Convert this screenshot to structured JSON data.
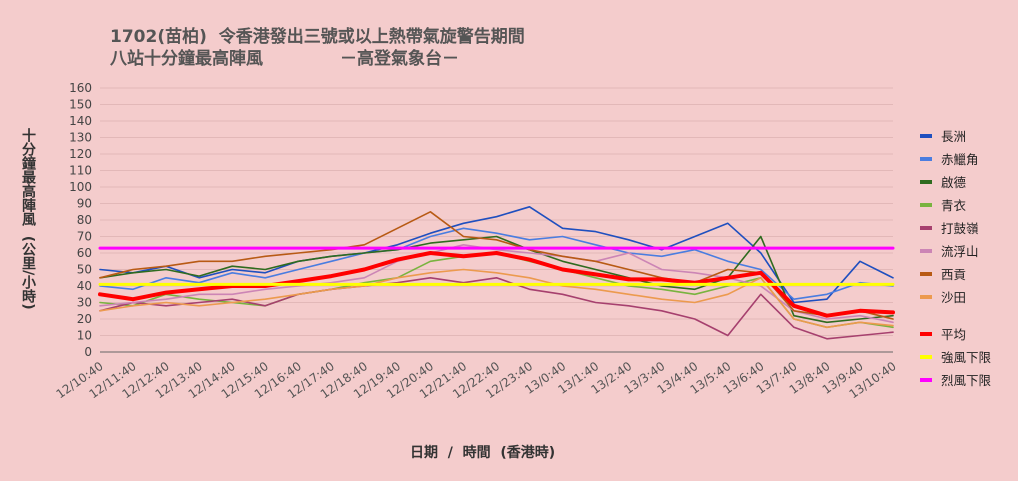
{
  "title": {
    "line1": "1702(苗柏)  令香港發出三號或以上熱帶氣旋警告期間",
    "line2": "八站十分鐘最高陣風             －高登氣象台－"
  },
  "colors": {
    "background": "#f4cccc",
    "grid": "#e2b8b8",
    "axis": "#666666"
  },
  "chart_data": {
    "type": "line",
    "xlabel": "日期  /  時間  (香港時)",
    "ylabel": "十分鐘最高陣風  (公里/小時)",
    "ylim": [
      0,
      160
    ],
    "yticks": [
      0,
      10,
      20,
      30,
      40,
      50,
      60,
      70,
      80,
      90,
      100,
      110,
      120,
      130,
      140,
      150,
      160
    ],
    "grid": true,
    "legend_position": "right",
    "categories": [
      "12/10:40",
      "12/11:40",
      "12/12:40",
      "12/13:40",
      "12/14:40",
      "12/15:40",
      "12/16:40",
      "12/17:40",
      "12/18:40",
      "12/19:40",
      "12/20:40",
      "12/21:40",
      "12/22:40",
      "12/23:40",
      "13/0:40",
      "13/1:40",
      "13/2:40",
      "13/3:40",
      "13/4:40",
      "13/5:40",
      "13/6:40",
      "13/7:40",
      "13/8:40",
      "13/9:40",
      "13/10:40"
    ],
    "series": [
      {
        "name": "長洲",
        "color": "#1f4fbf",
        "width": 1.6,
        "values": [
          50,
          48,
          52,
          45,
          50,
          48,
          55,
          58,
          60,
          65,
          72,
          78,
          82,
          88,
          75,
          73,
          68,
          62,
          70,
          78,
          60,
          30,
          32,
          55,
          45
        ]
      },
      {
        "name": "赤鱲角",
        "color": "#4a7de0",
        "width": 1.6,
        "values": [
          40,
          38,
          45,
          42,
          48,
          45,
          50,
          55,
          60,
          62,
          70,
          75,
          72,
          68,
          70,
          65,
          60,
          58,
          62,
          55,
          50,
          32,
          35,
          42,
          40
        ]
      },
      {
        "name": "啟德",
        "color": "#2f6b1f",
        "width": 1.6,
        "values": [
          45,
          48,
          50,
          46,
          52,
          50,
          55,
          58,
          60,
          62,
          66,
          68,
          70,
          62,
          55,
          50,
          45,
          40,
          38,
          45,
          70,
          22,
          18,
          20,
          22
        ]
      },
      {
        "name": "青衣",
        "color": "#79b33f",
        "width": 1.6,
        "values": [
          30,
          28,
          35,
          32,
          30,
          28,
          35,
          38,
          42,
          45,
          55,
          58,
          60,
          55,
          50,
          45,
          40,
          38,
          35,
          40,
          45,
          20,
          15,
          18,
          15
        ]
      },
      {
        "name": "打鼓嶺",
        "color": "#a6406e",
        "width": 1.6,
        "values": [
          25,
          30,
          28,
          30,
          32,
          28,
          35,
          38,
          40,
          42,
          45,
          42,
          45,
          38,
          35,
          30,
          28,
          25,
          20,
          10,
          35,
          15,
          8,
          10,
          12
        ]
      },
      {
        "name": "流浮山",
        "color": "#cc85b5",
        "width": 1.6,
        "values": [
          28,
          30,
          32,
          35,
          35,
          38,
          40,
          42,
          45,
          55,
          60,
          65,
          62,
          60,
          58,
          55,
          60,
          50,
          48,
          45,
          40,
          25,
          20,
          22,
          18
        ]
      },
      {
        "name": "西貢",
        "color": "#b85a14",
        "width": 1.6,
        "values": [
          45,
          50,
          52,
          55,
          55,
          58,
          60,
          62,
          65,
          75,
          85,
          70,
          68,
          62,
          58,
          55,
          50,
          45,
          42,
          50,
          48,
          25,
          22,
          25,
          20
        ]
      },
      {
        "name": "沙田",
        "color": "#ec9a4e",
        "width": 1.6,
        "values": [
          25,
          28,
          30,
          28,
          30,
          32,
          35,
          38,
          40,
          45,
          48,
          50,
          48,
          45,
          40,
          38,
          35,
          32,
          30,
          35,
          45,
          20,
          15,
          18,
          16
        ]
      },
      {
        "name": "平均",
        "color": "#ff0000",
        "width": 4.0,
        "values": [
          35,
          32,
          36,
          38,
          40,
          40,
          43,
          46,
          50,
          56,
          60,
          58,
          60,
          56,
          50,
          47,
          44,
          44,
          42,
          45,
          48,
          28,
          22,
          25,
          24
        ]
      },
      {
        "name": "強風下限",
        "color": "#ffff00",
        "width": 3,
        "values": [
          41,
          41,
          41,
          41,
          41,
          41,
          41,
          41,
          41,
          41,
          41,
          41,
          41,
          41,
          41,
          41,
          41,
          41,
          41,
          41,
          41,
          41,
          41,
          41,
          41
        ]
      },
      {
        "name": "烈風下限",
        "color": "#ff00ff",
        "width": 3,
        "values": [
          63,
          63,
          63,
          63,
          63,
          63,
          63,
          63,
          63,
          63,
          63,
          63,
          63,
          63,
          63,
          63,
          63,
          63,
          63,
          63,
          63,
          63,
          63,
          63,
          63
        ]
      }
    ]
  }
}
